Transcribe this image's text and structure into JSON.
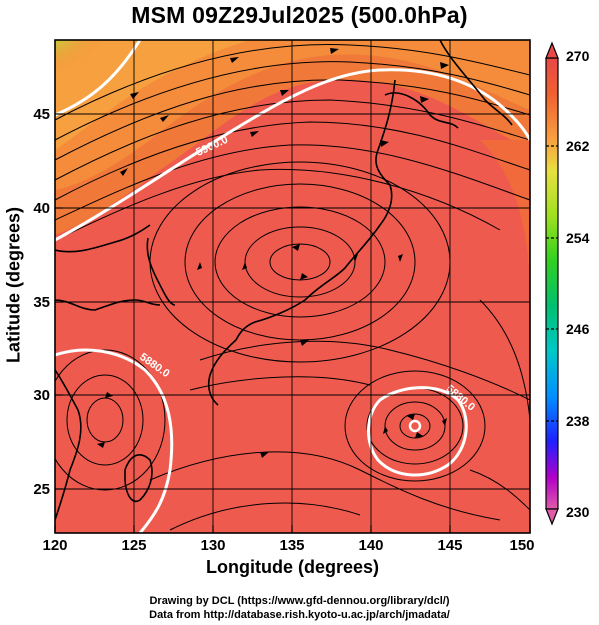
{
  "title": "MSM 09Z29Jul2025 (500.0hPa)",
  "xlabel": "Longitude (degrees)",
  "ylabel": "Latitude  (degrees)",
  "footer": {
    "line1": "Drawing by DCL (https://www.gfd-dennou.org/library/dcl/)",
    "line2": "Data from http://database.rish.kyoto-u.ac.jp/arch/jmadata/"
  },
  "map": {
    "xlim": [
      120,
      150
    ],
    "ylim": [
      22.4,
      47.6
    ],
    "xticks": [
      "120",
      "125",
      "130",
      "135",
      "140",
      "145",
      "150"
    ],
    "yticks": [
      "25",
      "30",
      "35",
      "40",
      "45"
    ],
    "grid": true
  },
  "colorbar": {
    "labels": [
      "270",
      "262",
      "254",
      "246",
      "238",
      "230"
    ],
    "range": [
      230,
      270
    ],
    "colors": [
      "#e05aa8",
      "#b000c8",
      "#2020ff",
      "#0090ff",
      "#00c8c8",
      "#00c070",
      "#30d020",
      "#a0e020",
      "#e8e040",
      "#f8a040",
      "#f06030",
      "#e84848"
    ]
  },
  "contours": [
    {
      "label": "5900.0"
    },
    {
      "label": "5880.0"
    },
    {
      "label": "5880.0"
    }
  ],
  "colors": {
    "warm": "#ee5a4e",
    "orange": "#f07a38",
    "coastline": "#000000",
    "contour": "#ffffff"
  }
}
